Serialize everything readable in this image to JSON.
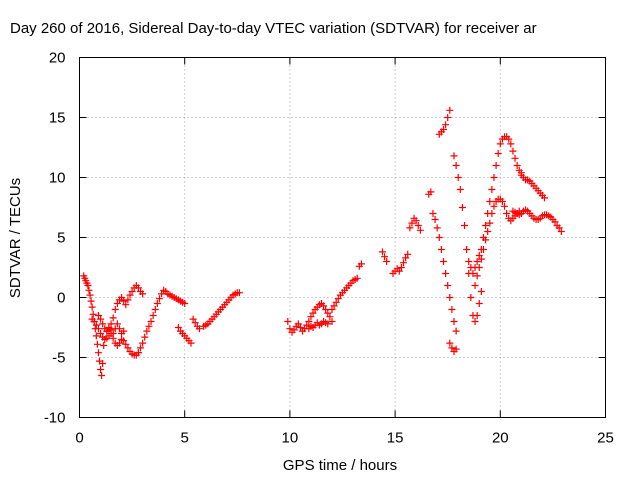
{
  "chart_data": {
    "type": "scatter",
    "title": "Day 260 of 2016, Sidereal Day-to-day VTEC variation (SDTVAR) for receiver ar",
    "xlabel": "GPS time / hours",
    "ylabel": "SDTVAR / TECUs",
    "xlim": [
      0,
      25
    ],
    "ylim": [
      -10,
      20
    ],
    "xticks": [
      "0",
      "5",
      "10",
      "15",
      "20",
      "25"
    ],
    "yticks": [
      "-10",
      "-5",
      "0",
      "5",
      "10",
      "15",
      "20"
    ],
    "grid": true,
    "marker": "plus",
    "color": "#ff0000",
    "series": [
      {
        "x": [
          0.2,
          0.25,
          0.3,
          0.35,
          0.4,
          0.45,
          0.5,
          0.55,
          0.6,
          0.65,
          0.7,
          0.75,
          0.8,
          0.85,
          0.9,
          0.95,
          1.0,
          1.05,
          1.1,
          1.15
        ],
        "y": [
          1.8,
          1.6,
          1.4,
          1.2,
          1.0,
          0.6,
          0.2,
          -0.3,
          -0.8,
          -1.4,
          -2.0,
          -2.6,
          -3.2,
          -3.9,
          -4.6,
          -5.3,
          -6.0,
          -6.5,
          -5.5,
          -4.0
        ]
      },
      {
        "x": [
          0.6,
          0.7,
          0.8,
          0.9,
          1.0,
          1.1,
          1.2,
          1.3,
          1.4,
          1.5,
          1.6,
          1.7,
          1.8,
          1.9,
          2.0,
          2.1,
          2.2,
          2.3,
          2.4,
          2.5,
          2.6,
          2.7,
          2.8
        ],
        "y": [
          -1.8,
          -2.0,
          -2.3,
          -2.6,
          -3.0,
          -3.3,
          -3.5,
          -3.4,
          -3.2,
          -3.0,
          -3.4,
          -3.8,
          -4.0,
          -3.8,
          -3.5,
          -3.6,
          -3.9,
          -4.2,
          -4.5,
          -4.7,
          -4.8,
          -4.8,
          -4.6
        ]
      },
      {
        "x": [
          0.9,
          1.0,
          1.1,
          1.2,
          1.3,
          1.4,
          1.5,
          1.6,
          1.7,
          1.8,
          1.9,
          2.0,
          2.1,
          2.2,
          2.3,
          2.4,
          2.5,
          2.6,
          2.7,
          2.8,
          2.9,
          3.0
        ],
        "y": [
          -1.5,
          -1.8,
          -2.2,
          -2.6,
          -2.8,
          -2.6,
          -2.2,
          -1.7,
          -1.0,
          -0.5,
          -0.2,
          0.0,
          -0.3,
          -0.6,
          -0.2,
          0.2,
          0.5,
          0.8,
          1.0,
          0.8,
          0.5,
          0.3
        ]
      },
      {
        "x": [
          1.3,
          1.4,
          1.5,
          1.6,
          1.7,
          1.8,
          1.9,
          2.0,
          2.1
        ],
        "y": [
          -2.8,
          -2.5,
          -2.7,
          -3.0,
          -2.6,
          -2.2,
          -2.6,
          -3.0,
          -2.8
        ]
      },
      {
        "x": [
          2.8,
          2.9,
          3.0,
          3.1,
          3.2,
          3.3,
          3.4,
          3.5,
          3.6,
          3.7,
          3.8,
          3.9,
          4.0,
          4.1,
          4.2,
          4.3,
          4.4,
          4.5,
          4.6,
          4.7,
          4.8,
          4.9,
          5.0
        ],
        "y": [
          -4.6,
          -4.2,
          -3.8,
          -3.3,
          -2.8,
          -2.4,
          -2.0,
          -1.5,
          -1.0,
          -0.5,
          -0.1,
          0.3,
          0.6,
          0.5,
          0.3,
          0.2,
          0.1,
          0.0,
          -0.1,
          -0.2,
          -0.3,
          -0.4,
          -0.5
        ]
      },
      {
        "x": [
          4.7,
          4.8,
          4.9,
          5.0,
          5.1,
          5.2,
          5.3
        ],
        "y": [
          -2.5,
          -2.8,
          -3.0,
          -3.2,
          -3.4,
          -3.6,
          -3.8
        ]
      },
      {
        "x": [
          5.4,
          5.5,
          5.6,
          5.7
        ],
        "y": [
          -1.8,
          -2.1,
          -2.4,
          -2.6
        ]
      },
      {
        "x": [
          5.9,
          6.0,
          6.1,
          6.2,
          6.3,
          6.4,
          6.5,
          6.6,
          6.7,
          6.8,
          6.9,
          7.0,
          7.1,
          7.2,
          7.3,
          7.4,
          7.5,
          7.6
        ],
        "y": [
          -2.4,
          -2.3,
          -2.2,
          -2.0,
          -1.8,
          -1.6,
          -1.4,
          -1.2,
          -1.0,
          -0.8,
          -0.6,
          -0.4,
          -0.2,
          0.0,
          0.2,
          0.3,
          0.4,
          0.4
        ]
      },
      {
        "x": [
          9.9,
          10.0,
          10.1,
          10.2,
          10.3,
          10.4,
          10.5,
          10.6,
          10.7,
          10.8,
          10.9,
          11.0,
          11.1,
          11.2,
          11.3,
          11.4,
          11.5,
          11.6,
          11.7,
          11.8,
          11.9,
          12.0
        ],
        "y": [
          -2.0,
          -2.6,
          -2.9,
          -2.7,
          -2.4,
          -2.2,
          -2.5,
          -2.8,
          -2.6,
          -2.3,
          -2.0,
          -1.6,
          -1.3,
          -1.0,
          -0.8,
          -0.6,
          -0.5,
          -0.7,
          -1.0,
          -1.3,
          -1.6,
          -2.0
        ]
      },
      {
        "x": [
          10.9,
          11.0,
          11.1,
          11.2,
          11.3,
          11.4,
          11.5,
          11.6,
          11.7,
          11.8
        ],
        "y": [
          -2.6,
          -2.4,
          -2.5,
          -2.3,
          -2.1,
          -2.3,
          -2.2,
          -2.0,
          -2.1,
          -2.2
        ]
      },
      {
        "x": [
          12.0,
          12.1,
          12.2,
          12.3,
          12.4,
          12.5,
          12.6,
          12.7,
          12.8,
          12.9,
          13.0,
          13.1,
          13.2
        ],
        "y": [
          -1.0,
          -0.7,
          -0.4,
          -0.1,
          0.2,
          0.4,
          0.6,
          0.8,
          1.0,
          1.2,
          1.4,
          1.5,
          1.6
        ]
      },
      {
        "x": [
          13.3,
          13.4
        ],
        "y": [
          2.6,
          2.8
        ]
      },
      {
        "x": [
          14.4,
          14.5,
          14.6
        ],
        "y": [
          3.8,
          3.4,
          3.0
        ]
      },
      {
        "x": [
          14.9,
          15.0,
          15.1,
          15.2,
          15.3,
          15.4,
          15.5,
          15.6
        ],
        "y": [
          2.0,
          2.2,
          2.4,
          2.2,
          2.5,
          2.9,
          3.3,
          3.6
        ]
      },
      {
        "x": [
          15.7,
          15.8,
          15.9,
          16.0,
          16.1,
          16.2
        ],
        "y": [
          5.8,
          6.2,
          6.6,
          6.4,
          6.0,
          5.6
        ]
      },
      {
        "x": [
          16.6,
          16.7
        ],
        "y": [
          8.6,
          8.8
        ]
      },
      {
        "x": [
          16.8,
          16.9,
          17.0,
          17.1,
          17.2,
          17.3,
          17.4,
          17.5,
          17.6,
          17.7,
          17.8,
          17.9
        ],
        "y": [
          7.0,
          6.5,
          5.8,
          5.0,
          4.0,
          3.0,
          2.0,
          1.0,
          0.0,
          -1.0,
          -2.0,
          -2.8
        ]
      },
      {
        "x": [
          17.6,
          17.7,
          17.8,
          17.9
        ],
        "y": [
          -3.8,
          -4.2,
          -4.5,
          -4.3
        ]
      },
      {
        "x": [
          17.1,
          17.2,
          17.3,
          17.4,
          17.5,
          17.6
        ],
        "y": [
          13.6,
          13.8,
          14.0,
          14.4,
          15.0,
          15.6
        ]
      },
      {
        "x": [
          17.8,
          17.9,
          18.0,
          18.1,
          18.2,
          18.3,
          18.4,
          18.5,
          18.6,
          18.7,
          18.8,
          18.9,
          19.0,
          19.1
        ],
        "y": [
          11.8,
          11.0,
          10.0,
          9.0,
          7.5,
          6.0,
          4.0,
          2.0,
          0.0,
          -1.5,
          -2.0,
          -1.5,
          -0.5,
          0.5
        ]
      },
      {
        "x": [
          18.5,
          18.6,
          18.7,
          18.8,
          18.9,
          19.0,
          19.1,
          19.2,
          19.3,
          19.4,
          19.5,
          19.6,
          19.7,
          19.8,
          19.9,
          20.0,
          20.1,
          20.2,
          20.3,
          20.4,
          20.5,
          20.6,
          20.7,
          20.8,
          20.9,
          21.0
        ],
        "y": [
          3.0,
          2.5,
          2.0,
          2.5,
          3.0,
          3.5,
          4.0,
          5.0,
          6.0,
          7.0,
          8.0,
          9.0,
          10.0,
          11.0,
          12.0,
          12.8,
          13.2,
          13.4,
          13.4,
          13.2,
          12.8,
          12.2,
          11.6,
          11.0,
          10.6,
          10.4
        ]
      },
      {
        "x": [
          21.0,
          21.1,
          21.2,
          21.3,
          21.4,
          21.5,
          21.6,
          21.7,
          21.8,
          21.9,
          22.0,
          22.1
        ],
        "y": [
          10.2,
          10.0,
          9.8,
          9.8,
          9.7,
          9.5,
          9.3,
          9.1,
          8.9,
          8.7,
          8.5,
          8.3
        ]
      },
      {
        "x": [
          18.8,
          18.9,
          19.0,
          19.1,
          19.2,
          19.3,
          19.4,
          19.5,
          19.6,
          19.7,
          19.8,
          19.9,
          20.0,
          20.1,
          20.2,
          20.3,
          20.4,
          20.5,
          20.6,
          20.7,
          20.8,
          20.9,
          21.0
        ],
        "y": [
          1.0,
          1.8,
          2.5,
          3.2,
          4.0,
          4.8,
          5.5,
          6.2,
          7.0,
          7.6,
          8.0,
          8.2,
          8.2,
          8.0,
          7.6,
          7.0,
          6.6,
          6.4,
          6.6,
          6.8,
          7.0,
          7.2,
          7.0
        ]
      },
      {
        "x": [
          20.6,
          20.7,
          20.8,
          20.9,
          21.0,
          21.1,
          21.2,
          21.3,
          21.4,
          21.5,
          21.6,
          21.7,
          21.8,
          21.9,
          22.0,
          22.1,
          22.2,
          22.3,
          22.4,
          22.5,
          22.6,
          22.7,
          22.8,
          22.9
        ],
        "y": [
          7.2,
          7.1,
          7.0,
          6.9,
          7.0,
          7.2,
          7.3,
          7.2,
          7.0,
          6.8,
          6.6,
          6.5,
          6.5,
          6.6,
          6.8,
          6.9,
          6.9,
          6.8,
          6.7,
          6.5,
          6.3,
          6.0,
          5.8,
          5.5
        ]
      }
    ]
  }
}
